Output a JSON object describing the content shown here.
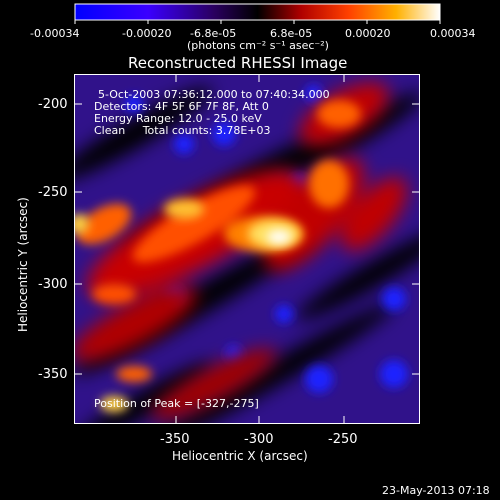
{
  "colorbar": {
    "ticks": [
      "-0.00034",
      "-0.00020",
      "-6.8e-05",
      "6.8e-05",
      "0.00020",
      "0.00034"
    ],
    "unit_label": "(photons cm⁻² s⁻¹ asec⁻²)",
    "colors": [
      "#0000ff",
      "#4b00ff",
      "#000000",
      "#ff0000",
      "#ff8c00",
      "#ffffff"
    ]
  },
  "title": "Reconstructed RHESSI Image",
  "info": {
    "time": "5-Oct-2003 07:36:12.000 to 07:40:34.000",
    "detectors": "Detectors: 4F 5F 6F 7F 8F, Att 0",
    "energy": "Energy Range: 12.0 - 25.0 keV",
    "clean": "Clean     Total counts: 3.78E+03",
    "peak": "Position of Peak = [-327,-275]"
  },
  "x_axis": {
    "label": "Heliocentric X (arcsec)",
    "ticks": [
      "-350",
      "-300",
      "-250"
    ]
  },
  "y_axis": {
    "label": "Heliocentric Y (arcsec)",
    "ticks": [
      "-200",
      "-250",
      "-300",
      "-350"
    ]
  },
  "footer": {
    "timestamp": "23-May-2013 07:18"
  },
  "image_extent": {
    "x": [
      -400,
      -220
    ],
    "y": [
      -375,
      -190
    ]
  },
  "peak": {
    "x": -327,
    "y": -275
  }
}
